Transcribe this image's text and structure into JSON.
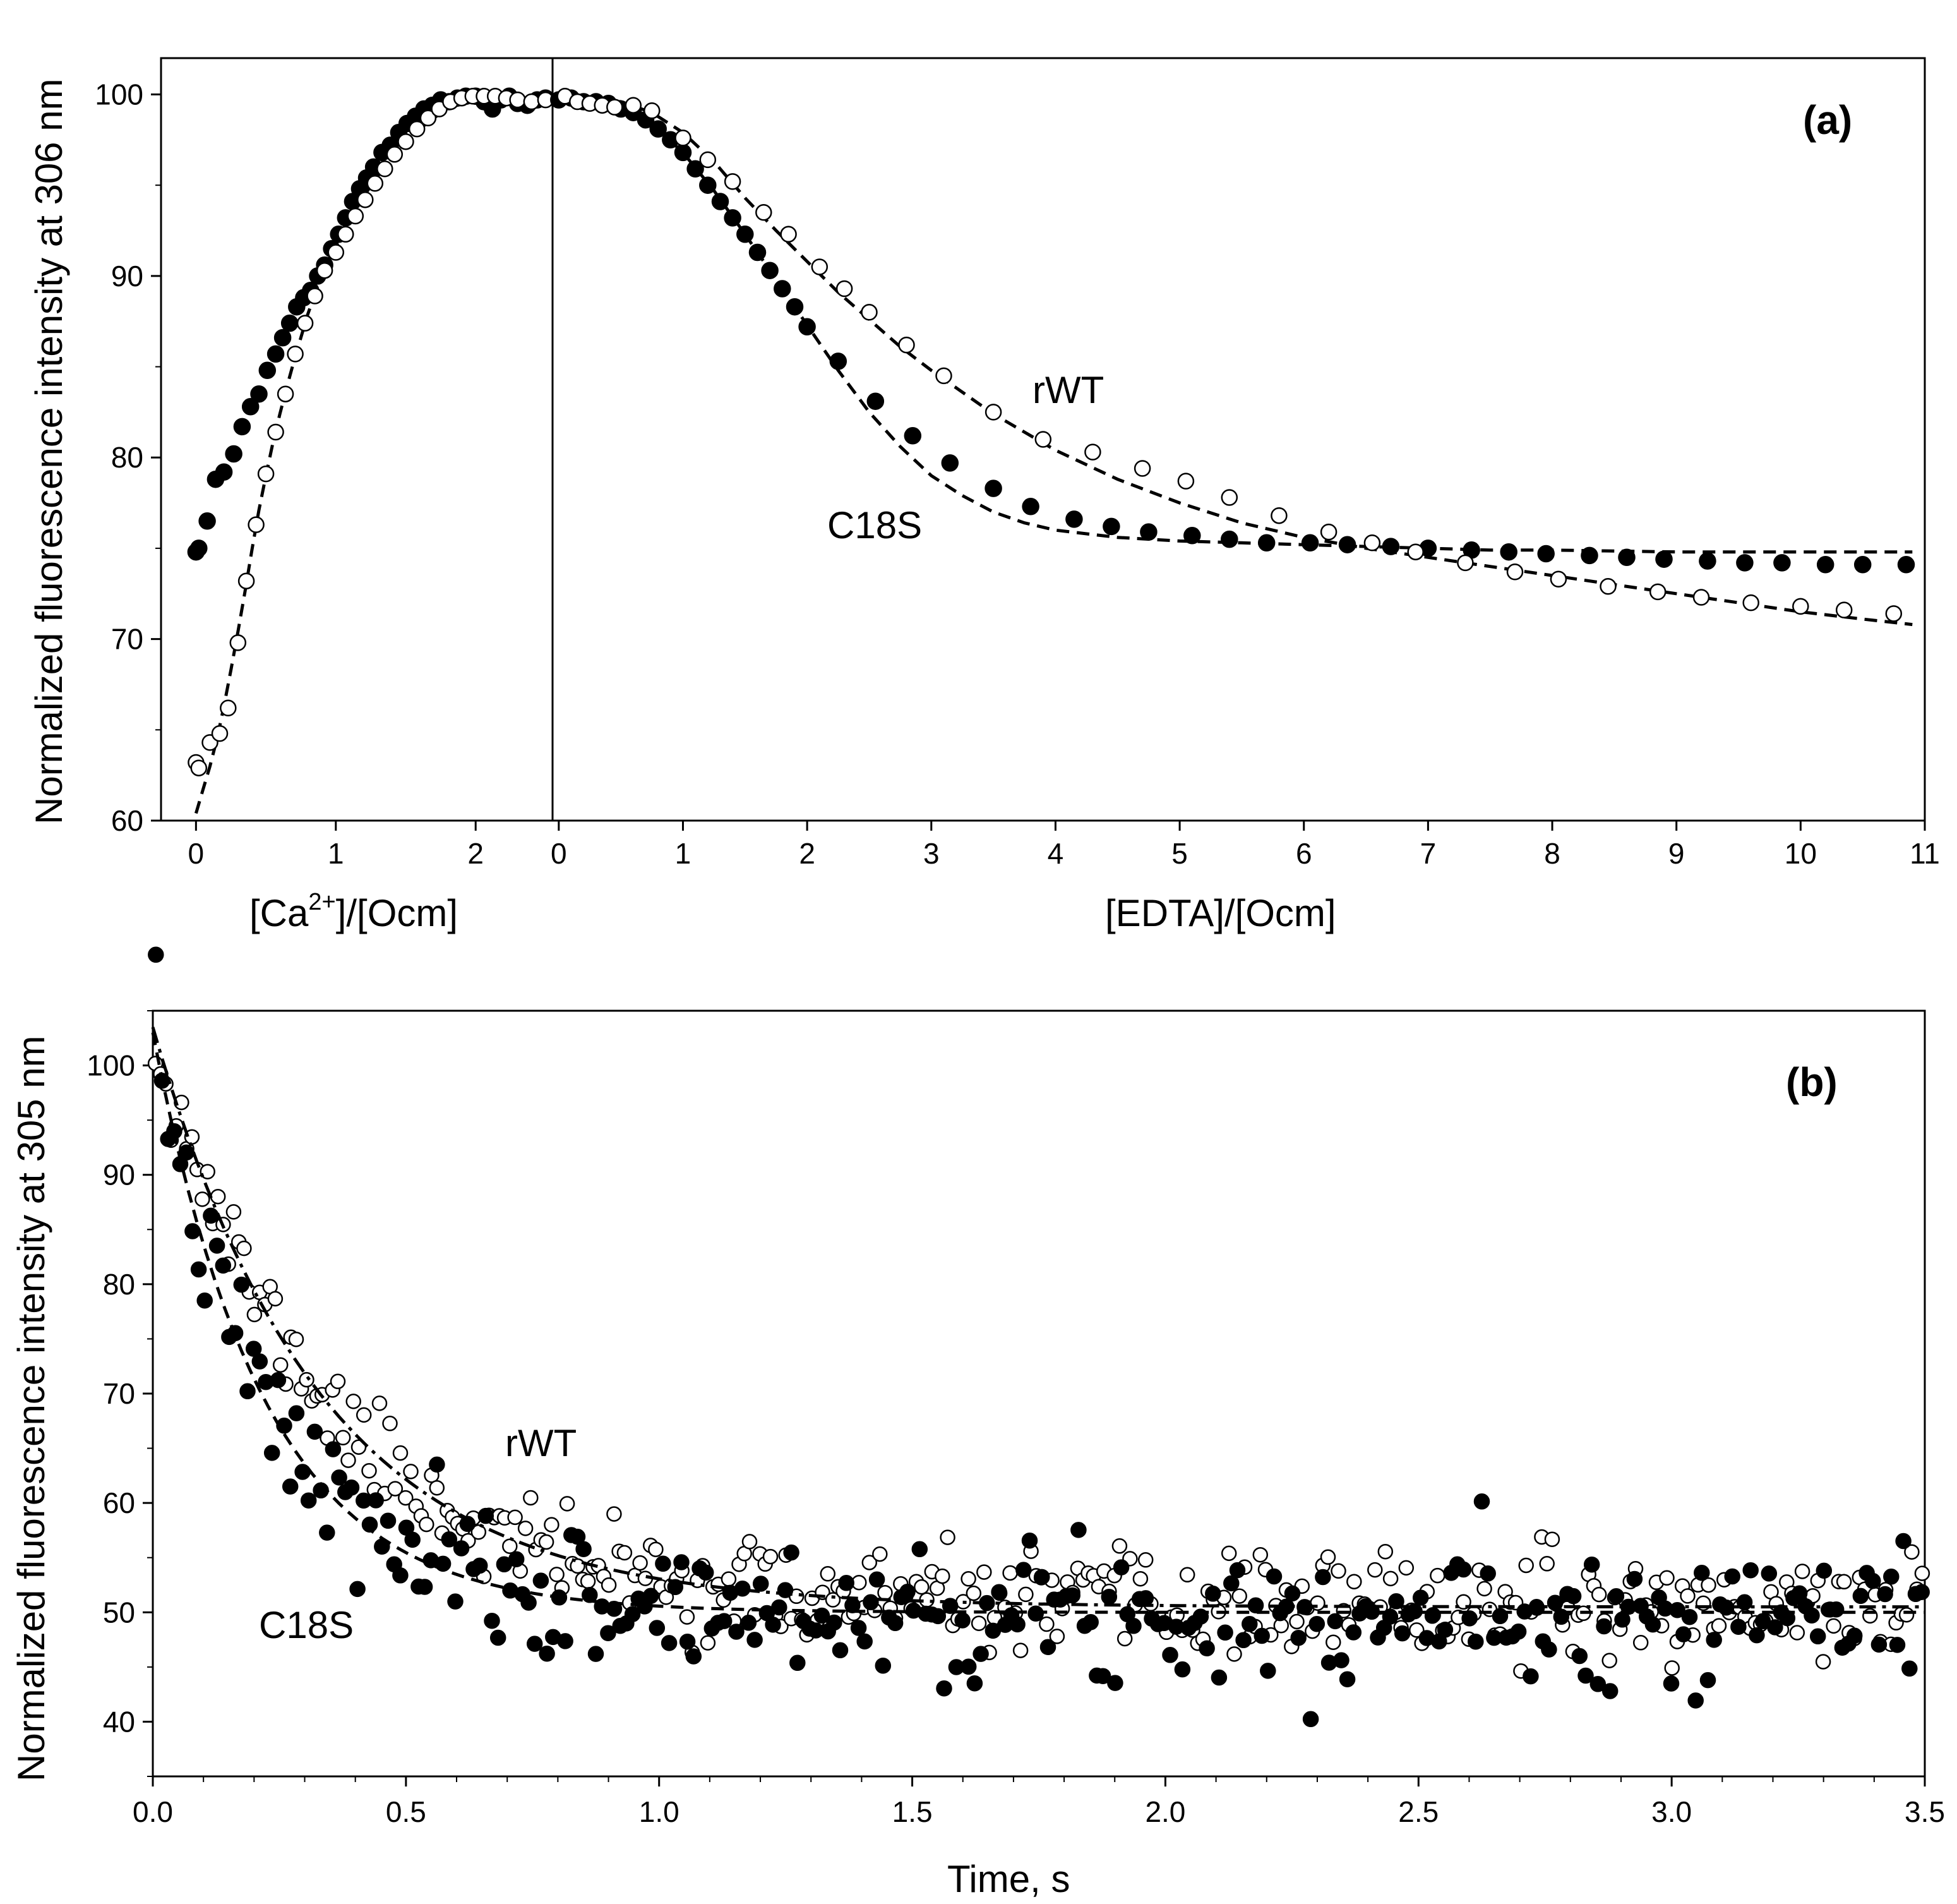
{
  "chart_data": [
    {
      "panel": "(a)",
      "type": "scatter",
      "ylabel": "Normalized fluorescence intensity at 306 nm",
      "ylim": [
        60,
        102
      ],
      "yticks": [
        60,
        70,
        80,
        90,
        100
      ],
      "left_axis": {
        "xlabel_prefix": "[Ca",
        "xlabel_sup": "2+",
        "xlabel_suffix": "]/[Ocm]",
        "xlim": [
          -0.25,
          2.55
        ],
        "xticks": [
          0,
          1,
          2
        ]
      },
      "right_axis": {
        "xlabel": "[EDTA]/[Ocm]",
        "xlim": [
          -0.05,
          11.0
        ],
        "xticks": [
          0,
          1,
          2,
          3,
          4,
          5,
          6,
          7,
          8,
          9,
          10,
          11
        ]
      },
      "annotations": {
        "rwt": "rWT",
        "c18s": "C18S"
      },
      "series": [
        {
          "name": "C18S Ca titration",
          "segment": "left",
          "marker": "filled",
          "x": [
            0.0,
            0.02,
            0.08,
            0.14,
            0.2,
            0.27,
            0.33,
            0.39,
            0.45,
            0.51,
            0.57,
            0.62,
            0.67,
            0.72,
            0.77,
            0.82,
            0.87,
            0.92,
            0.97,
            1.02,
            1.07,
            1.12,
            1.17,
            1.22,
            1.27,
            1.33,
            1.39,
            1.45,
            1.51,
            1.57,
            1.63,
            1.69,
            1.75,
            1.81,
            1.87,
            1.93,
            2.0,
            2.06,
            2.12,
            2.18,
            2.24,
            2.3,
            2.37,
            2.44,
            2.5
          ],
          "y": [
            74.8,
            75.0,
            76.5,
            78.8,
            79.2,
            80.2,
            81.7,
            82.8,
            83.5,
            84.8,
            85.7,
            86.6,
            87.4,
            88.3,
            88.8,
            89.2,
            90.0,
            90.6,
            91.5,
            92.3,
            93.2,
            94.1,
            94.8,
            95.4,
            96.0,
            96.8,
            97.2,
            97.9,
            98.4,
            98.8,
            99.2,
            99.4,
            99.7,
            99.6,
            99.8,
            99.9,
            99.9,
            99.6,
            99.2,
            99.7,
            99.9,
            99.5,
            99.4,
            99.7,
            99.8
          ]
        },
        {
          "name": "rWT Ca titration",
          "segment": "left",
          "marker": "open",
          "x": [
            0.0,
            0.02,
            0.1,
            0.17,
            0.23,
            0.3,
            0.36,
            0.43,
            0.5,
            0.57,
            0.64,
            0.71,
            0.78,
            0.85,
            0.92,
            1.0,
            1.07,
            1.14,
            1.21,
            1.28,
            1.35,
            1.42,
            1.5,
            1.58,
            1.66,
            1.74,
            1.82,
            1.9,
            1.98,
            2.06,
            2.14,
            2.22,
            2.3,
            2.4,
            2.5
          ],
          "y": [
            63.2,
            62.9,
            64.3,
            64.8,
            66.2,
            69.8,
            73.2,
            76.3,
            79.1,
            81.4,
            83.5,
            85.7,
            87.4,
            88.9,
            90.3,
            91.3,
            92.3,
            93.3,
            94.2,
            95.1,
            95.9,
            96.7,
            97.4,
            98.1,
            98.7,
            99.2,
            99.6,
            99.8,
            99.9,
            99.9,
            99.9,
            99.8,
            99.7,
            99.6,
            99.7
          ]
        },
        {
          "name": "C18S EDTA titration",
          "segment": "right",
          "marker": "filled",
          "x": [
            0.0,
            0.1,
            0.2,
            0.3,
            0.4,
            0.5,
            0.6,
            0.7,
            0.8,
            0.9,
            1.0,
            1.1,
            1.2,
            1.3,
            1.4,
            1.5,
            1.6,
            1.7,
            1.8,
            1.9,
            2.0,
            2.25,
            2.55,
            2.85,
            3.15,
            3.5,
            3.8,
            4.15,
            4.45,
            4.75,
            5.1,
            5.4,
            5.7,
            6.05,
            6.35,
            6.7,
            7.0,
            7.35,
            7.65,
            7.95,
            8.3,
            8.6,
            8.9,
            9.25,
            9.55,
            9.85,
            10.2,
            10.5,
            10.85
          ],
          "y": [
            99.7,
            99.8,
            99.6,
            99.6,
            99.5,
            99.2,
            99.0,
            98.6,
            98.1,
            97.5,
            96.8,
            95.9,
            95.0,
            94.1,
            93.2,
            92.3,
            91.3,
            90.3,
            89.3,
            88.3,
            87.2,
            85.3,
            83.1,
            81.2,
            79.7,
            78.3,
            77.3,
            76.6,
            76.2,
            75.9,
            75.7,
            75.5,
            75.3,
            75.3,
            75.2,
            75.1,
            75.0,
            74.9,
            74.8,
            74.7,
            74.6,
            74.5,
            74.4,
            74.3,
            74.2,
            74.2,
            74.1,
            74.1,
            74.1
          ]
        },
        {
          "name": "rWT EDTA titration",
          "segment": "right",
          "marker": "open",
          "x": [
            0.05,
            0.15,
            0.25,
            0.35,
            0.45,
            0.6,
            0.75,
            1.0,
            1.2,
            1.4,
            1.65,
            1.85,
            2.1,
            2.3,
            2.5,
            2.8,
            3.1,
            3.5,
            3.9,
            4.3,
            4.7,
            5.05,
            5.4,
            5.8,
            6.2,
            6.55,
            6.9,
            7.3,
            7.7,
            8.05,
            8.45,
            8.85,
            9.2,
            9.6,
            10.0,
            10.35,
            10.75
          ],
          "y": [
            99.9,
            99.6,
            99.5,
            99.4,
            99.3,
            99.4,
            99.1,
            97.6,
            96.4,
            95.2,
            93.5,
            92.3,
            90.5,
            89.3,
            88.0,
            86.2,
            84.5,
            82.5,
            81.0,
            80.3,
            79.4,
            78.7,
            77.8,
            76.8,
            75.9,
            75.3,
            74.8,
            74.2,
            73.7,
            73.3,
            72.9,
            72.6,
            72.3,
            72.0,
            71.8,
            71.6,
            71.4
          ]
        },
        {
          "name": "rWT Ca fit",
          "segment": "left",
          "style": "dash",
          "x": [
            0.0,
            0.05,
            0.1,
            0.15,
            0.2,
            0.25,
            0.3,
            0.35,
            0.4,
            0.45,
            0.5,
            0.55,
            0.6,
            0.65,
            0.7,
            0.75,
            0.8,
            0.85,
            0.9,
            0.95,
            1.0,
            1.1,
            1.2,
            1.3,
            1.4,
            1.5,
            1.6,
            1.7,
            1.8,
            1.9,
            2.0,
            2.1,
            2.2,
            2.3,
            2.4,
            2.5,
            2.55
          ],
          "y": [
            60.4,
            61.7,
            63.0,
            64.5,
            66.3,
            68.3,
            70.4,
            72.6,
            74.9,
            77.1,
            79.0,
            80.8,
            82.4,
            83.9,
            85.3,
            86.6,
            87.9,
            89.0,
            90.0,
            90.9,
            91.7,
            93.2,
            94.4,
            95.5,
            96.5,
            97.4,
            98.1,
            98.7,
            99.2,
            99.5,
            99.7,
            99.8,
            99.9,
            99.9,
            99.9,
            99.8,
            99.8
          ]
        },
        {
          "name": "rWT EDTA fit",
          "segment": "right",
          "style": "dash",
          "x": [
            0.0,
            0.25,
            0.5,
            0.75,
            1.0,
            1.25,
            1.5,
            1.75,
            2.0,
            2.25,
            2.5,
            2.75,
            3.0,
            3.5,
            4.0,
            4.5,
            5.0,
            5.5,
            6.0,
            6.5,
            7.0,
            7.5,
            8.0,
            8.5,
            9.0,
            9.5,
            10.0,
            10.5,
            10.9
          ],
          "y": [
            99.8,
            99.8,
            99.6,
            99.0,
            97.9,
            96.3,
            94.3,
            92.5,
            90.8,
            89.1,
            87.6,
            86.1,
            84.8,
            82.4,
            80.4,
            78.8,
            77.5,
            76.4,
            75.6,
            75.0,
            74.5,
            74.0,
            73.5,
            73.0,
            72.5,
            72.0,
            71.5,
            71.1,
            70.8
          ]
        },
        {
          "name": "C18S EDTA fit",
          "segment": "right",
          "style": "dash",
          "x": [
            0.0,
            0.25,
            0.5,
            0.75,
            1.0,
            1.25,
            1.5,
            1.75,
            2.0,
            2.25,
            2.5,
            2.75,
            3.0,
            3.25,
            3.5,
            3.75,
            4.0,
            4.5,
            5.0,
            5.5,
            6.0,
            6.5,
            7.0,
            7.5,
            8.0,
            9.0,
            10.0,
            10.9
          ],
          "y": [
            99.8,
            99.7,
            99.3,
            98.4,
            96.8,
            94.7,
            92.3,
            89.8,
            87.3,
            84.8,
            82.5,
            80.6,
            79.0,
            77.9,
            77.0,
            76.4,
            76.0,
            75.6,
            75.4,
            75.3,
            75.2,
            75.1,
            75.0,
            74.9,
            74.9,
            74.8,
            74.8,
            74.8
          ]
        }
      ]
    },
    {
      "panel": "(b)",
      "type": "scatter",
      "xlabel": "Time, s",
      "ylabel": "Normalized fluorescence intensity at 305 nm",
      "xlim": [
        0.0,
        3.5
      ],
      "ylim": [
        35,
        105
      ],
      "xticks": [
        "0.0",
        "0.5",
        "1.0",
        "1.5",
        "2.0",
        "2.5",
        "3.0",
        "3.5"
      ],
      "yticks": [
        40,
        50,
        60,
        70,
        80,
        90,
        100
      ],
      "annotations": {
        "rwt": "rWT",
        "c18s": "C18S"
      },
      "series": [
        {
          "name": "rWT kinetics",
          "marker": "open",
          "model": "exponential",
          "amplitude": 53,
          "tau_s": 0.33,
          "plateau": 50.5,
          "noise_sd": 2.2,
          "n_points": 340,
          "seed": 11
        },
        {
          "name": "C18S kinetics",
          "marker": "filled",
          "model": "exponential",
          "amplitude": 53,
          "tau_s": 0.22,
          "plateau": 50.0,
          "noise_sd": 3.1,
          "n_points": 290,
          "seed": 7
        },
        {
          "name": "rWT fit",
          "style": "dashdot",
          "model": "exponential",
          "amplitude": 53,
          "tau_s": 0.33,
          "plateau": 50.5
        },
        {
          "name": "C18S fit",
          "style": "dash",
          "model": "exponential",
          "amplitude": 53,
          "tau_s": 0.22,
          "plateau": 50.0
        }
      ]
    }
  ]
}
